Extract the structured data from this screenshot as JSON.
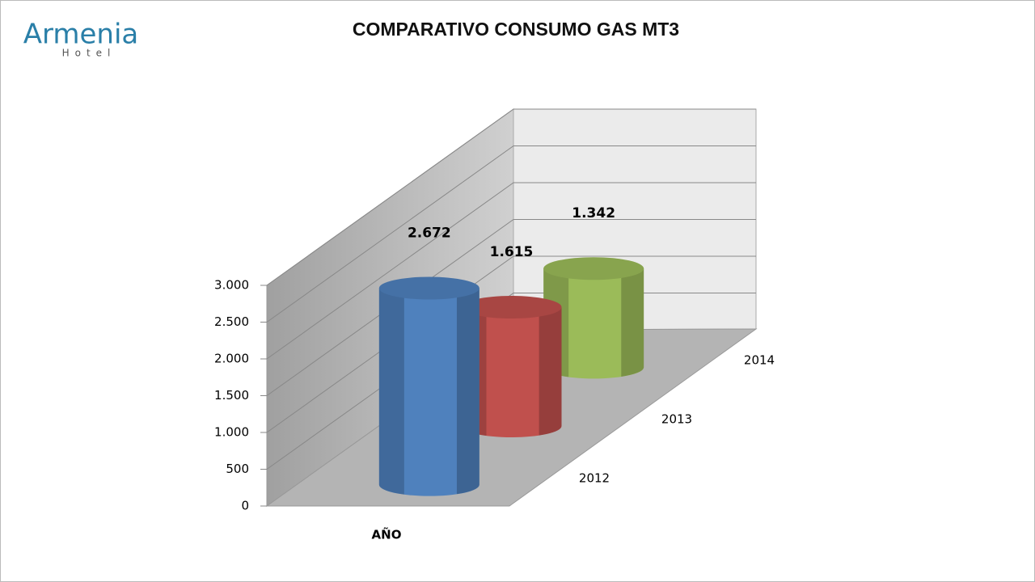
{
  "logo": {
    "name": "Armenia",
    "sub": "Hotel"
  },
  "chart_data": {
    "type": "bar",
    "title": "COMPARATIVO CONSUMO GAS MT3",
    "categories": [
      "AÑO"
    ],
    "series": [
      {
        "name": "2012",
        "color": "#4f81bd",
        "values": [
          2672
        ],
        "value_labels": [
          "2.672"
        ]
      },
      {
        "name": "2013",
        "color": "#c0504d",
        "values": [
          1615
        ],
        "value_labels": [
          "1.615"
        ]
      },
      {
        "name": "2014",
        "color": "#9bbb59",
        "values": [
          1342
        ],
        "value_labels": [
          "1.342"
        ]
      }
    ],
    "ylim": [
      0,
      3000
    ],
    "yticks": [
      0,
      500,
      {
        "value": 1000,
        "label": "1.000"
      },
      {
        "value": 1500,
        "label": "1.500"
      },
      {
        "value": 2000,
        "label": "2.000"
      },
      {
        "value": 2500,
        "label": "2.500"
      },
      {
        "value": 3000,
        "label": "3.000"
      }
    ],
    "grid": true
  }
}
